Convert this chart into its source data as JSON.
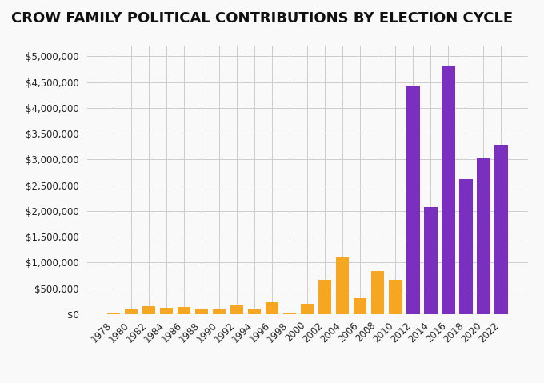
{
  "title": "CROW FAMILY POLITICAL CONTRIBUTIONS BY ELECTION CYCLE",
  "years": [
    1978,
    1980,
    1982,
    1984,
    1986,
    1988,
    1990,
    1992,
    1994,
    1996,
    1998,
    2000,
    2002,
    2004,
    2006,
    2008,
    2010,
    2012,
    2014,
    2016,
    2018,
    2020,
    2022
  ],
  "values": [
    15000,
    90000,
    150000,
    120000,
    130000,
    100000,
    95000,
    185000,
    105000,
    230000,
    20000,
    200000,
    670000,
    1100000,
    305000,
    830000,
    670000,
    4430000,
    2080000,
    4800000,
    2620000,
    3020000,
    3280000
  ],
  "colors": [
    "#f5a623",
    "#f5a623",
    "#f5a623",
    "#f5a623",
    "#f5a623",
    "#f5a623",
    "#f5a623",
    "#f5a623",
    "#f5a623",
    "#f5a623",
    "#f5a623",
    "#f5a623",
    "#f5a623",
    "#f5a623",
    "#f5a623",
    "#f5a623",
    "#f5a623",
    "#7b2fbe",
    "#7b2fbe",
    "#7b2fbe",
    "#7b2fbe",
    "#7b2fbe",
    "#7b2fbe"
  ],
  "ylim": [
    0,
    5200000
  ],
  "yticks": [
    0,
    500000,
    1000000,
    1500000,
    2000000,
    2500000,
    3000000,
    3500000,
    4000000,
    4500000,
    5000000
  ],
  "background_color": "#f9f9f9",
  "grid_color": "#cccccc",
  "title_fontsize": 13,
  "tick_fontsize": 8.5,
  "bar_width": 0.75
}
